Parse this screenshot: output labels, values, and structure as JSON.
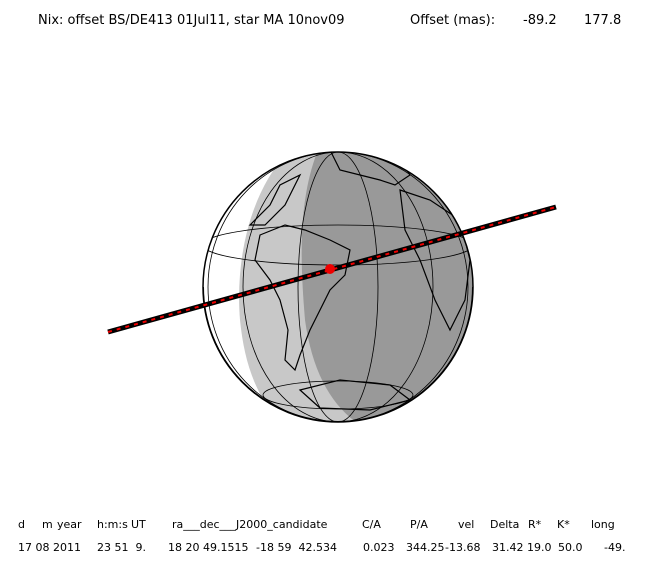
{
  "header": {
    "title": "Nix: offset BS/DE413 01Jul11, star MA 10nov09",
    "offset_label": "Offset (mas):",
    "offset_values": [
      "-89.2",
      "177.8"
    ]
  },
  "table": {
    "columns": [
      "d",
      "m",
      "year",
      "h:m:s",
      "UT",
      "ra___dec___J2000_candidate",
      "C/A",
      "P/A",
      "vel",
      "Delta",
      "R*",
      "K*",
      "long"
    ],
    "row": [
      "17 08 2011",
      "23 51  9.",
      "18 20 49.1515",
      "-18 59  42.534",
      "0.023",
      "344.25",
      "-13.68",
      "31.42",
      "19.0",
      "50.0",
      "-49."
    ]
  }
}
